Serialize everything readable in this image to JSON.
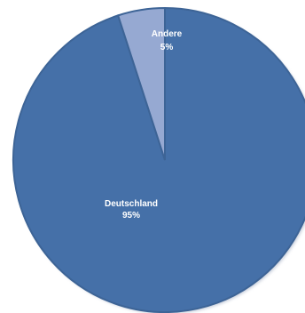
{
  "chart_data": {
    "type": "pie",
    "categories": [
      "Deutschland",
      "Andere"
    ],
    "values": [
      95,
      5
    ],
    "value_labels": [
      "95%",
      "5%"
    ],
    "colors": [
      "#4570a8",
      "#96a9d2"
    ],
    "border_color": "#3d6496",
    "start": "top, clockwise"
  }
}
